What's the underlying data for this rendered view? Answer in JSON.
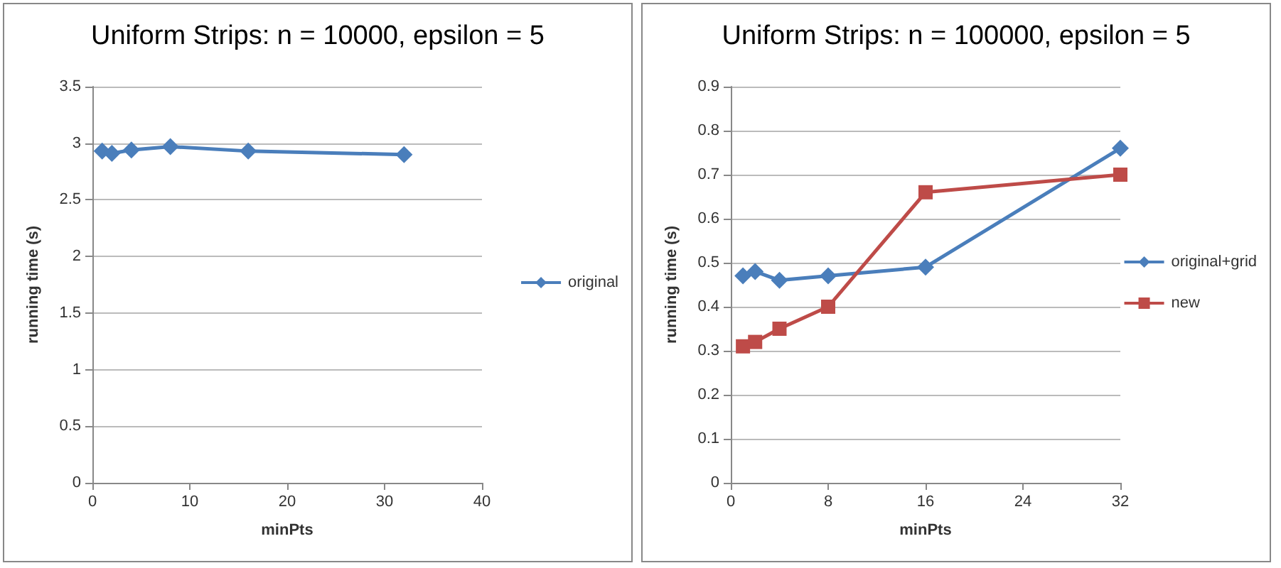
{
  "chart_data": [
    {
      "type": "line",
      "title": "Uniform Strips: n = 10000, epsilon = 5",
      "xlabel": "minPts",
      "ylabel": "running time (s)",
      "x": [
        1,
        2,
        4,
        8,
        16,
        32
      ],
      "series": [
        {
          "name": "original",
          "color": "#4a7ebb",
          "marker": "diamond",
          "values": [
            2.93,
            2.91,
            2.94,
            2.97,
            2.93,
            2.9
          ]
        }
      ],
      "xlim": [
        0,
        40
      ],
      "xticks": [
        0,
        10,
        20,
        30,
        40
      ],
      "ylim": [
        0,
        3.5
      ],
      "yticks": [
        0,
        0.5,
        1,
        1.5,
        2,
        2.5,
        3,
        3.5
      ],
      "grid": "y",
      "legend": "right"
    },
    {
      "type": "line",
      "title": "Uniform Strips: n = 100000, epsilon = 5",
      "xlabel": "minPts",
      "ylabel": "running time (s)",
      "x": [
        1,
        2,
        4,
        8,
        16,
        32
      ],
      "series": [
        {
          "name": "original+grid",
          "color": "#4a7ebb",
          "marker": "diamond",
          "values": [
            0.47,
            0.48,
            0.46,
            0.47,
            0.49,
            0.76
          ]
        },
        {
          "name": "new",
          "color": "#be4b48",
          "marker": "square",
          "values": [
            0.31,
            0.32,
            0.35,
            0.4,
            0.66,
            0.7
          ]
        }
      ],
      "xlim": [
        0,
        32
      ],
      "xticks": [
        0,
        8,
        16,
        24,
        32
      ],
      "ylim": [
        0,
        0.9
      ],
      "yticks": [
        0,
        0.1,
        0.2,
        0.3,
        0.4,
        0.5,
        0.6,
        0.7,
        0.8,
        0.9
      ],
      "grid": "y",
      "legend": "right"
    }
  ]
}
